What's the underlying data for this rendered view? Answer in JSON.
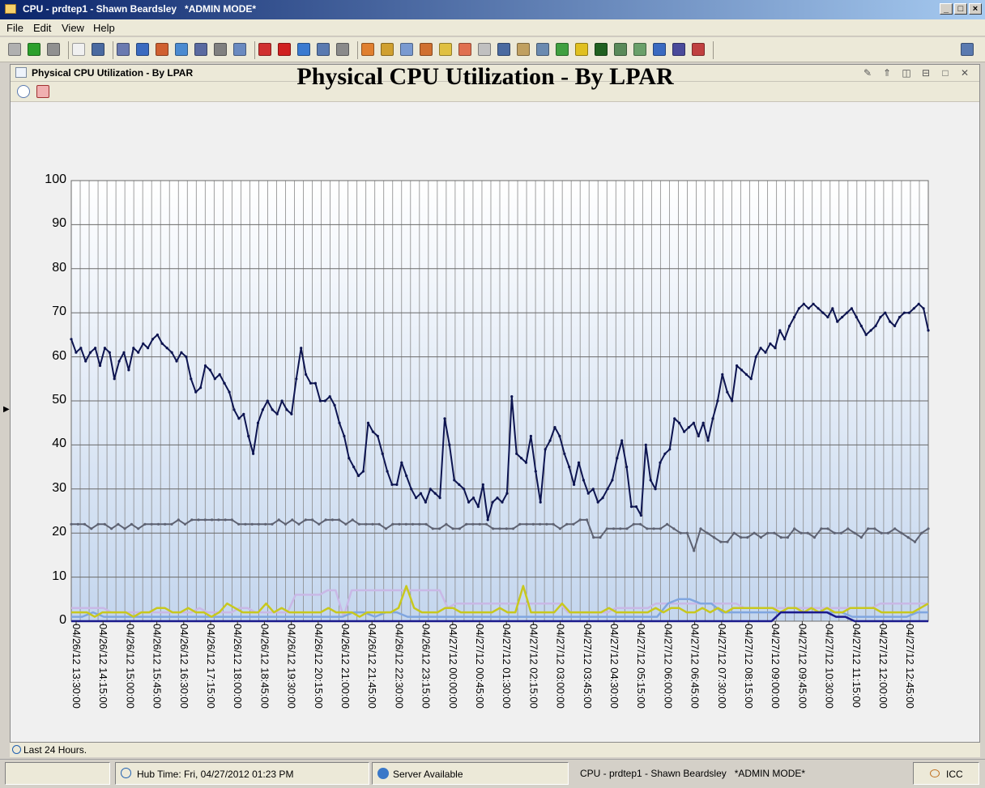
{
  "window": {
    "title": "CPU - prdtep1 - Shawn Beardsley   *ADMIN MODE*",
    "controls": [
      "minimize-icon",
      "maximize-icon",
      "close-icon"
    ]
  },
  "menu": {
    "file": "File",
    "edit": "Edit",
    "view": "View",
    "help": "Help"
  },
  "toolbar": {
    "icons": [
      "home-icon",
      "back-arrow-icon",
      "forward-arrow-icon",
      "new-workspace-icon",
      "save-icon",
      "properties-icon",
      "edit-icon",
      "components-icon",
      "browser-icon",
      "user-icon",
      "terminal-icon",
      "copy-icon",
      "pause-icon",
      "record-icon",
      "refresh-icon",
      "table-view-icon",
      "mute-icon",
      "pie-chart-icon",
      "bar-chart-icon",
      "plot-chart-icon",
      "area-chart-icon",
      "gauge-icon",
      "heatmap-icon",
      "notepad-icon",
      "table-icon",
      "message-log-icon",
      "edit-situation-icon",
      "image-icon",
      "event-icon",
      "terminal-view-icon",
      "topology-icon",
      "graph-icon",
      "tree-icon",
      "monitor-icon",
      "situation-icon",
      "workspace-icon"
    ]
  },
  "panel": {
    "title": "Physical CPU Utilization - By LPAR",
    "controls": [
      "edit-icon",
      "maximize-panel-icon",
      "split-vertical-icon",
      "split-horizontal-icon",
      "restore-icon",
      "close-icon"
    ],
    "toolbar_icons": [
      "timespan-icon",
      "chart-properties-icon"
    ]
  },
  "chart_data": {
    "type": "line",
    "title": "Physical CPU Utilization - By LPAR",
    "ylim": [
      0,
      100
    ],
    "yticks": [
      "100",
      "90",
      "80",
      "70",
      "60",
      "50",
      "40",
      "30",
      "20",
      "10",
      "0"
    ],
    "xticks": [
      "04/26/12 13:30:00",
      "04/26/12 14:15:00",
      "04/26/12 15:00:00",
      "04/26/12 15:45:00",
      "04/26/12 16:30:00",
      "04/26/12 17:15:00",
      "04/26/12 18:00:00",
      "04/26/12 18:45:00",
      "04/26/12 19:30:00",
      "04/26/12 20:15:00",
      "04/26/12 21:00:00",
      "04/26/12 21:45:00",
      "04/26/12 22:30:00",
      "04/26/12 23:15:00",
      "04/27/12 00:00:00",
      "04/27/12 00:45:00",
      "04/27/12 01:30:00",
      "04/27/12 02:15:00",
      "04/27/12 03:00:00",
      "04/27/12 03:45:00",
      "04/27/12 04:30:00",
      "04/27/12 05:15:00",
      "04/27/12 06:00:00",
      "04/27/12 06:45:00",
      "04/27/12 07:30:00",
      "04/27/12 08:15:00",
      "04/27/12 09:00:00",
      "04/27/12 09:45:00",
      "04/27/12 10:30:00",
      "04/27/12 11:15:00",
      "04/27/12 12:00:00",
      "04/27/12 12:45:00"
    ],
    "grid": true,
    "background": "gradient white to light blue",
    "series": [
      {
        "color": "#0d1450",
        "marker": true,
        "values": [
          64,
          61,
          62,
          59,
          61,
          62,
          58,
          62,
          61,
          55,
          59,
          61,
          57,
          62,
          61,
          63,
          62,
          64,
          65,
          63,
          62,
          61,
          59,
          61,
          60,
          55,
          52,
          53,
          58,
          57,
          55,
          56,
          54,
          52,
          48,
          46,
          47,
          42,
          38,
          45,
          48,
          50,
          48,
          47,
          50,
          48,
          47,
          55,
          62,
          56,
          54,
          54,
          50,
          50,
          51,
          49,
          45,
          42,
          37,
          35,
          33,
          34,
          45,
          43,
          42,
          38,
          34,
          31,
          31,
          36,
          33,
          30,
          28,
          29,
          27,
          30,
          29,
          28,
          46,
          40,
          32,
          31,
          30,
          27,
          28,
          26,
          31,
          23,
          27,
          28,
          27,
          29,
          51,
          38,
          37,
          36,
          42,
          34,
          27,
          39,
          41,
          44,
          42,
          38,
          35,
          31,
          36,
          32,
          29,
          30,
          27,
          28,
          30,
          32,
          37,
          41,
          35,
          26,
          26,
          24,
          40,
          32,
          30,
          36,
          38,
          39,
          46,
          45,
          43,
          44,
          45,
          42,
          45,
          41,
          46,
          50,
          56,
          52,
          50,
          58,
          57,
          56,
          55,
          60,
          62,
          61,
          63,
          62,
          66,
          64,
          67,
          69,
          71,
          72,
          71,
          72,
          71,
          70,
          69,
          71,
          68,
          69,
          70,
          71,
          69,
          67,
          65,
          66,
          67,
          69,
          70,
          68,
          67,
          69,
          70,
          70,
          71,
          72,
          71,
          66
        ]
      },
      {
        "color": "#5e6272",
        "marker": true,
        "values": [
          22,
          22,
          22,
          21,
          22,
          22,
          21,
          22,
          21,
          22,
          21,
          22,
          22,
          22,
          22,
          22,
          23,
          22,
          23,
          23,
          23,
          23,
          23,
          23,
          23,
          22,
          22,
          22,
          22,
          22,
          22,
          23,
          22,
          23,
          22,
          23,
          23,
          22,
          23,
          23,
          23,
          22,
          23,
          22,
          22,
          22,
          22,
          21,
          22,
          22,
          22,
          22,
          22,
          22,
          21,
          21,
          22,
          21,
          21,
          22,
          22,
          22,
          22,
          21,
          21,
          21,
          21,
          22,
          22,
          22,
          22,
          22,
          22,
          21,
          22,
          22,
          23,
          23,
          19,
          19,
          21,
          21,
          21,
          21,
          22,
          22,
          21,
          21,
          21,
          22,
          21,
          20,
          20,
          16,
          21,
          20,
          19,
          18,
          18,
          20,
          19,
          19,
          20,
          19,
          20,
          20,
          19,
          19,
          21,
          20,
          20,
          19,
          21,
          21,
          20,
          20,
          21,
          20,
          19,
          21,
          21,
          20,
          20,
          21,
          20,
          19,
          18,
          20,
          21
        ]
      },
      {
        "color": "#c9b8e6",
        "marker": false,
        "values": [
          3,
          3,
          3,
          3,
          3,
          2,
          2,
          2,
          2,
          2,
          2,
          2,
          2,
          2,
          2,
          2,
          3,
          2,
          2,
          2,
          2,
          3,
          3,
          2,
          2,
          2,
          2,
          2,
          6,
          6,
          6,
          6,
          7,
          7,
          1,
          7,
          7,
          7,
          7,
          7,
          7,
          7,
          7,
          7,
          7,
          7,
          7,
          3,
          4,
          4,
          4,
          4,
          4,
          4,
          4,
          4,
          4,
          4,
          4,
          4,
          4,
          4,
          2,
          2,
          2,
          2,
          2,
          2,
          3,
          3,
          3,
          3,
          3,
          4,
          4,
          4,
          4,
          4,
          4,
          4,
          4,
          4,
          4,
          4,
          3,
          3,
          3,
          3,
          3,
          3,
          3,
          3,
          3,
          3,
          3,
          3,
          3,
          3,
          3,
          3,
          3,
          4,
          4,
          4,
          4,
          4,
          4,
          4
        ]
      },
      {
        "color": "#80a6e0",
        "marker": false,
        "values": [
          1,
          1,
          2,
          1,
          1,
          1,
          1,
          1,
          1,
          1,
          1,
          1,
          1,
          1,
          1,
          1,
          1,
          1,
          1,
          1,
          1,
          1,
          1,
          1,
          1,
          1,
          2,
          2,
          1,
          2,
          2,
          1,
          1,
          1,
          1,
          1,
          1,
          1,
          1,
          1,
          1,
          1,
          1,
          1,
          1,
          1,
          1,
          1,
          1,
          1,
          1,
          1,
          1,
          1,
          1,
          4,
          5,
          5,
          4,
          4,
          2,
          2,
          2,
          2,
          2,
          2,
          2,
          2,
          2,
          2,
          2,
          2,
          1,
          1,
          1,
          1,
          1,
          1,
          2,
          2
        ]
      },
      {
        "color": "#c8c81e",
        "marker": false,
        "values": [
          2,
          2,
          2,
          1,
          2,
          2,
          2,
          2,
          1,
          2,
          2,
          3,
          3,
          2,
          2,
          3,
          2,
          2,
          1,
          2,
          4,
          3,
          2,
          2,
          2,
          4,
          2,
          3,
          2,
          2,
          2,
          2,
          2,
          3,
          2,
          2,
          2,
          1,
          2,
          2,
          2,
          2,
          3,
          8,
          3,
          2,
          2,
          2,
          3,
          3,
          2,
          2,
          2,
          2,
          2,
          3,
          2,
          2,
          8,
          2,
          2,
          2,
          2,
          4,
          2,
          2,
          2,
          2,
          2,
          3,
          2,
          2,
          2,
          2,
          2,
          3,
          2,
          3,
          3,
          2,
          2,
          3,
          2,
          3,
          2,
          3,
          3,
          3,
          3,
          3,
          3,
          2,
          3,
          3,
          2,
          3,
          2,
          3,
          2,
          2,
          3,
          3,
          3,
          3,
          2,
          2,
          2,
          2,
          2,
          3,
          4
        ]
      },
      {
        "color": "#1a1a8c",
        "marker": false,
        "values": [
          0,
          0,
          0,
          0,
          0,
          0,
          0,
          0,
          0,
          0,
          0,
          0,
          0,
          0,
          0,
          0,
          0,
          0,
          0,
          0,
          0,
          0,
          0,
          0,
          0,
          0,
          0,
          0,
          0,
          0,
          0,
          0,
          0,
          0,
          0,
          0,
          0,
          0,
          0,
          0,
          0,
          0,
          0,
          0,
          0,
          0,
          0,
          0,
          0,
          0,
          0,
          0,
          0,
          0,
          0,
          0,
          0,
          0,
          0,
          0,
          0,
          0,
          0,
          0,
          0,
          0,
          0,
          0,
          0,
          0,
          0,
          0,
          0,
          0,
          0,
          0,
          0,
          2,
          2,
          2,
          2,
          2,
          2,
          1,
          1,
          0,
          0,
          0,
          0,
          0,
          0,
          0,
          0,
          0
        ]
      }
    ]
  },
  "status": {
    "timespan": "Last 24 Hours."
  },
  "bottom": {
    "hub_time": "Hub Time: Fri, 04/27/2012 01:23 PM",
    "server": "Server Available",
    "workspace": "CPU - prdtep1 - Shawn Beardsley   *ADMIN MODE*",
    "user": "ICC"
  }
}
